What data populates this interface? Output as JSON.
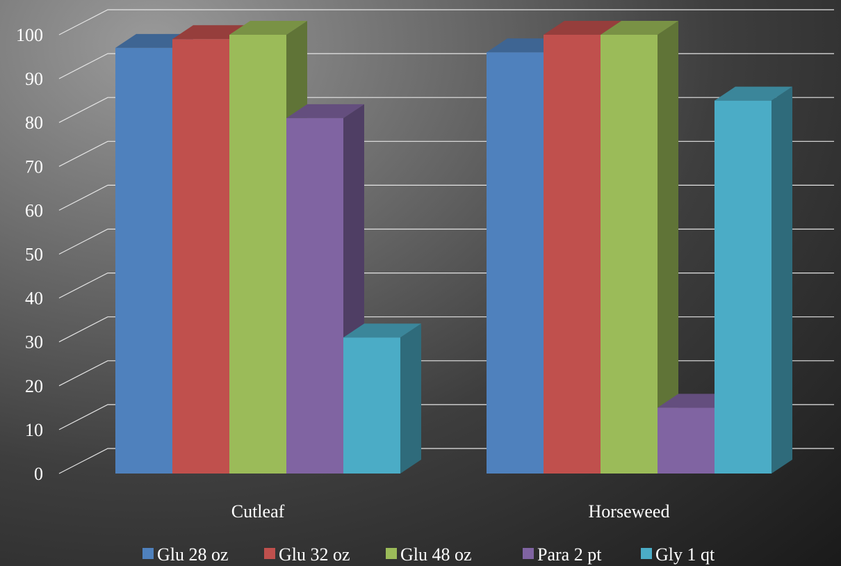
{
  "chart_data": {
    "type": "bar",
    "categories": [
      "Cutleaf",
      "Horseweed"
    ],
    "series": [
      {
        "name": "Glu 28 oz",
        "values": [
          97,
          96
        ],
        "color": "#4f81bd"
      },
      {
        "name": "Glu 32 oz",
        "values": [
          99,
          100
        ],
        "color": "#c0504d"
      },
      {
        "name": "Glu 48 oz",
        "values": [
          100,
          100
        ],
        "color": "#9bbb59"
      },
      {
        "name": "Para 2 pt",
        "values": [
          81,
          15
        ],
        "color": "#8064a2"
      },
      {
        "name": "Gly 1 qt",
        "values": [
          31,
          85
        ],
        "color": "#4bacc6"
      }
    ],
    "yticks": [
      "0",
      "10",
      "20",
      "30",
      "40",
      "50",
      "60",
      "70",
      "80",
      "90",
      "100"
    ],
    "ylim": [
      0,
      105
    ],
    "grid": true,
    "legend_position": "bottom",
    "title": "",
    "xlabel": "",
    "ylabel": ""
  }
}
